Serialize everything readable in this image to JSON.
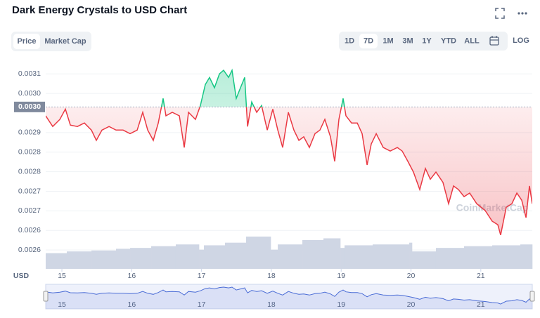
{
  "chart_data": {
    "type": "line",
    "title": "Dark Energy Crystals to USD Chart",
    "currency": "USD",
    "watermark": "CoinMarketCap",
    "up_color": "#16c784",
    "down_color": "#ea3943",
    "reference": {
      "value": 0.002972,
      "label": "0.0030"
    },
    "xlim": [
      14.768,
      21.737
    ],
    "xticks": [
      15,
      16,
      17,
      18,
      19,
      20,
      21
    ],
    "ylim": [
      0.002517,
      0.003095
    ],
    "yticks": [
      {
        "value": 0.003065,
        "label": "0.0031"
      },
      {
        "value": 0.00301,
        "label": "0.0030"
      },
      {
        "value": 0.0029,
        "label": "0.0029"
      },
      {
        "value": 0.002845,
        "label": "0.0028"
      },
      {
        "value": 0.00279,
        "label": "0.0028"
      },
      {
        "value": 0.002735,
        "label": "0.0027"
      },
      {
        "value": 0.00268,
        "label": "0.0027"
      },
      {
        "value": 0.002625,
        "label": "0.0026"
      },
      {
        "value": 0.00257,
        "label": "0.0026"
      }
    ],
    "grid": true,
    "x": [
      14.768,
      14.869,
      14.97,
      15.05,
      15.121,
      15.222,
      15.322,
      15.423,
      15.493,
      15.574,
      15.675,
      15.775,
      15.876,
      15.977,
      16.078,
      16.158,
      16.229,
      16.309,
      16.38,
      16.45,
      16.49,
      16.581,
      16.682,
      16.752,
      16.813,
      16.913,
      16.984,
      17.054,
      17.115,
      17.185,
      17.256,
      17.316,
      17.387,
      17.437,
      17.497,
      17.558,
      17.618,
      17.659,
      17.719,
      17.79,
      17.86,
      17.941,
      18.021,
      18.092,
      18.162,
      18.243,
      18.323,
      18.394,
      18.464,
      18.545,
      18.625,
      18.696,
      18.766,
      18.847,
      18.907,
      18.968,
      19.028,
      19.068,
      19.149,
      19.23,
      19.3,
      19.371,
      19.431,
      19.502,
      19.602,
      19.703,
      19.804,
      19.874,
      19.955,
      20.035,
      20.126,
      20.206,
      20.277,
      20.357,
      20.458,
      20.539,
      20.609,
      20.68,
      20.76,
      20.841,
      20.941,
      21.062,
      21.163,
      21.244,
      21.284,
      21.364,
      21.445,
      21.516,
      21.586,
      21.647,
      21.697,
      21.737
    ],
    "series": [
      {
        "values": [
          0.002947,
          0.002917,
          0.002937,
          0.002966,
          0.002921,
          0.002917,
          0.002927,
          0.002907,
          0.002878,
          0.002907,
          0.002917,
          0.002907,
          0.002907,
          0.002897,
          0.002907,
          0.002957,
          0.002907,
          0.002878,
          0.002927,
          0.002996,
          0.002947,
          0.002957,
          0.002947,
          0.002858,
          0.002957,
          0.002937,
          0.002976,
          0.003035,
          0.003055,
          0.003026,
          0.003065,
          0.003075,
          0.003055,
          0.003075,
          0.002996,
          0.003026,
          0.003055,
          0.002917,
          0.002986,
          0.002957,
          0.002976,
          0.002907,
          0.002966,
          0.002907,
          0.002858,
          0.002957,
          0.002907,
          0.002878,
          0.002888,
          0.002858,
          0.002897,
          0.002907,
          0.002937,
          0.002888,
          0.002819,
          0.002937,
          0.002996,
          0.002947,
          0.002927,
          0.002927,
          0.002897,
          0.002809,
          0.002868,
          0.002897,
          0.002858,
          0.002848,
          0.002858,
          0.002848,
          0.002819,
          0.002789,
          0.00274,
          0.002799,
          0.002769,
          0.002789,
          0.00276,
          0.0027,
          0.00275,
          0.00274,
          0.00272,
          0.00273,
          0.0027,
          0.002681,
          0.002651,
          0.002641,
          0.002612,
          0.00269,
          0.0027,
          0.00273,
          0.00271,
          0.002661,
          0.00275,
          0.0027
        ]
      }
    ],
    "volume": {
      "color": "#cfd6e4",
      "x": [
        14.768,
        15.07,
        15.423,
        15.775,
        15.977,
        16.279,
        16.631,
        16.964,
        17.034,
        17.336,
        17.638,
        17.991,
        18.092,
        18.444,
        18.746,
        18.988,
        19.048,
        19.451,
        19.975,
        20.015,
        20.357,
        20.76,
        21.163,
        21.566
      ],
      "values": [
        18,
        20,
        21,
        23,
        24,
        26,
        28,
        22,
        27,
        30,
        37,
        22,
        28,
        33,
        35,
        24,
        27,
        28,
        30,
        20,
        24,
        26,
        27,
        28
      ]
    },
    "navigator_color": "#4a6cd6"
  },
  "controls": {
    "toggles": [
      "Price",
      "Market Cap"
    ],
    "selected_toggle": 0,
    "ranges": [
      "1D",
      "7D",
      "1M",
      "3M",
      "1Y",
      "YTD",
      "ALL"
    ],
    "selected_range": 1,
    "log": "LOG"
  }
}
